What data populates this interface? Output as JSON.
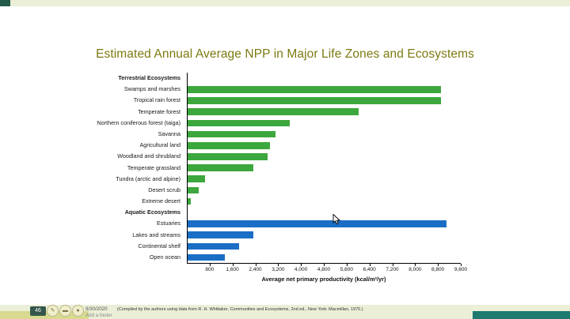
{
  "slide": {
    "caption": "(Compiled by the authors using data from R. H. Whittaker, Communities and Ecosystems, 2nd ed., New York: Macmillan, 1975.)"
  },
  "footer": {
    "slide_number": "46",
    "date": "9/30/2020",
    "placeholder": "Add a footer"
  },
  "icons": {
    "pen": "✎",
    "highlighter": "▬",
    "laser": "●"
  },
  "colors": {
    "terrestrial_bar": "#3ca73c",
    "aquatic_bar": "#1a6ec5",
    "title_text": "#7c7a10",
    "page_background": "#ecefd8",
    "bottom_accent_teal": "#1e7a70",
    "bottom_strip_yellow": "#d7da8f"
  },
  "chart_data": {
    "type": "bar",
    "orientation": "horizontal",
    "title": "Estimated Annual Average NPP in Major Life Zones and Ecosystems",
    "xlabel": "Average net primary productivity (kcal/m²/yr)",
    "xlim": [
      0,
      9600
    ],
    "xticks": [
      800,
      1600,
      2400,
      3200,
      4000,
      4800,
      5600,
      6400,
      7200,
      8000,
      8800,
      9600
    ],
    "grid": false,
    "legend": false,
    "groups": [
      {
        "label": "Terrestrial Ecosystems",
        "color": "#3ca73c",
        "items": [
          {
            "label": "Swamps and marshes",
            "value": 8900
          },
          {
            "label": "Tropical rain forest",
            "value": 8900
          },
          {
            "label": "Temperate forest",
            "value": 6000
          },
          {
            "label": "Northern coniferous forest (taiga)",
            "value": 3600
          },
          {
            "label": "Savanna",
            "value": 3100
          },
          {
            "label": "Agricultural land",
            "value": 2900
          },
          {
            "label": "Woodland and shrubland",
            "value": 2800
          },
          {
            "label": "Temperate grassland",
            "value": 2300
          },
          {
            "label": "Tundra (arctic and alpine)",
            "value": 600
          },
          {
            "label": "Desert scrub",
            "value": 400
          },
          {
            "label": "Extreme desert",
            "value": 100
          }
        ]
      },
      {
        "label": "Aquatic Ecosystems",
        "color": "#1a6ec5",
        "items": [
          {
            "label": "Estuaries",
            "value": 9100
          },
          {
            "label": "Lakes and streams",
            "value": 2300
          },
          {
            "label": "Continental shelf",
            "value": 1800
          },
          {
            "label": "Open ocean",
            "value": 1300
          }
        ]
      }
    ]
  }
}
